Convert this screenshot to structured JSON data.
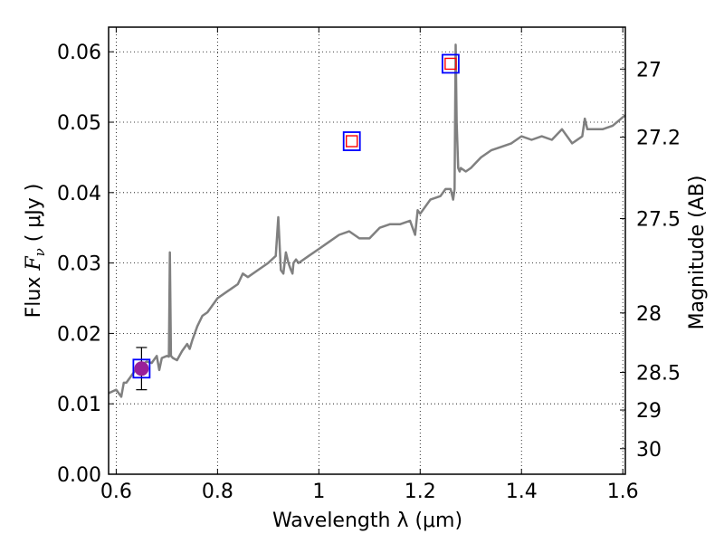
{
  "chart_data": {
    "type": "line",
    "xlabel": "Wavelength  λ (μm)",
    "ylabel_text": "Flux  ",
    "ylabel_math": "F",
    "ylabel_sub": "ν",
    "ylabel_units": "  ( μJy )",
    "y2label": "Magnitude (AB)",
    "xlim": [
      0.585,
      1.605
    ],
    "ylim": [
      0.0,
      0.0635
    ],
    "grid": true,
    "x_ticks": [
      {
        "value": 0.6,
        "label": "0.6"
      },
      {
        "value": 0.8,
        "label": "0.8"
      },
      {
        "value": 1.0,
        "label": "1"
      },
      {
        "value": 1.2,
        "label": "1.2"
      },
      {
        "value": 1.4,
        "label": "1.4"
      },
      {
        "value": 1.6,
        "label": "1.6"
      }
    ],
    "y_ticks": [
      {
        "value": 0.0,
        "label": "0.00"
      },
      {
        "value": 0.01,
        "label": "0.01"
      },
      {
        "value": 0.02,
        "label": "0.02"
      },
      {
        "value": 0.03,
        "label": "0.03"
      },
      {
        "value": 0.04,
        "label": "0.04"
      },
      {
        "value": 0.05,
        "label": "0.05"
      },
      {
        "value": 0.06,
        "label": "0.06"
      }
    ],
    "y2_ticks": [
      {
        "value": 27,
        "label": "27"
      },
      {
        "value": 27.2,
        "label": "27.2"
      },
      {
        "value": 27.5,
        "label": "27.5"
      },
      {
        "value": 28,
        "label": "28"
      },
      {
        "value": 28.5,
        "label": "28.5"
      },
      {
        "value": 29,
        "label": "29"
      },
      {
        "value": 30,
        "label": "30"
      }
    ],
    "series": [
      {
        "color": "#808080",
        "x": [
          0.585,
          0.6,
          0.61,
          0.615,
          0.62,
          0.63,
          0.64,
          0.65,
          0.66,
          0.67,
          0.68,
          0.685,
          0.69,
          0.7,
          0.704,
          0.706,
          0.708,
          0.712,
          0.72,
          0.73,
          0.74,
          0.745,
          0.75,
          0.76,
          0.77,
          0.78,
          0.8,
          0.82,
          0.84,
          0.85,
          0.86,
          0.88,
          0.9,
          0.915,
          0.92,
          0.925,
          0.93,
          0.935,
          0.94,
          0.945,
          0.948,
          0.95,
          0.955,
          0.96,
          0.98,
          1.0,
          1.02,
          1.04,
          1.06,
          1.08,
          1.1,
          1.12,
          1.14,
          1.16,
          1.18,
          1.19,
          1.195,
          1.2,
          1.22,
          1.24,
          1.25,
          1.26,
          1.265,
          1.268,
          1.27,
          1.272,
          1.275,
          1.278,
          1.28,
          1.29,
          1.3,
          1.32,
          1.34,
          1.36,
          1.38,
          1.4,
          1.42,
          1.44,
          1.46,
          1.48,
          1.5,
          1.52,
          1.525,
          1.53,
          1.56,
          1.58,
          1.605
        ],
        "y": [
          0.0115,
          0.012,
          0.011,
          0.013,
          0.013,
          0.014,
          0.015,
          0.0155,
          0.016,
          0.0158,
          0.0168,
          0.0148,
          0.0165,
          0.0168,
          0.0167,
          0.0315,
          0.0168,
          0.0165,
          0.0162,
          0.0175,
          0.0185,
          0.0178,
          0.019,
          0.021,
          0.0225,
          0.023,
          0.025,
          0.026,
          0.027,
          0.0285,
          0.028,
          0.029,
          0.03,
          0.031,
          0.0365,
          0.029,
          0.0285,
          0.0315,
          0.03,
          0.029,
          0.0285,
          0.03,
          0.0305,
          0.03,
          0.031,
          0.032,
          0.033,
          0.034,
          0.0345,
          0.0335,
          0.0335,
          0.035,
          0.0355,
          0.0355,
          0.036,
          0.034,
          0.0375,
          0.037,
          0.039,
          0.0395,
          0.0405,
          0.0405,
          0.039,
          0.0405,
          0.061,
          0.05,
          0.0435,
          0.043,
          0.0435,
          0.043,
          0.0435,
          0.045,
          0.046,
          0.0465,
          0.047,
          0.048,
          0.0475,
          0.048,
          0.0475,
          0.049,
          0.047,
          0.048,
          0.0505,
          0.049,
          0.049,
          0.0495,
          0.051
        ]
      }
    ],
    "points": [
      {
        "x": 0.65,
        "y": 0.015,
        "marker": "box",
        "box_color": "#0000ff",
        "inner_color": "#9a1f9a",
        "filled": true,
        "error": 0.003
      },
      {
        "x": 1.065,
        "y": 0.0473,
        "marker": "box",
        "box_color": "#0000ff",
        "inner_color": "#ff0000",
        "filled": false
      },
      {
        "x": 1.26,
        "y": 0.0583,
        "marker": "box",
        "box_color": "#0000ff",
        "inner_color": "#ff0000",
        "filled": false
      }
    ]
  }
}
